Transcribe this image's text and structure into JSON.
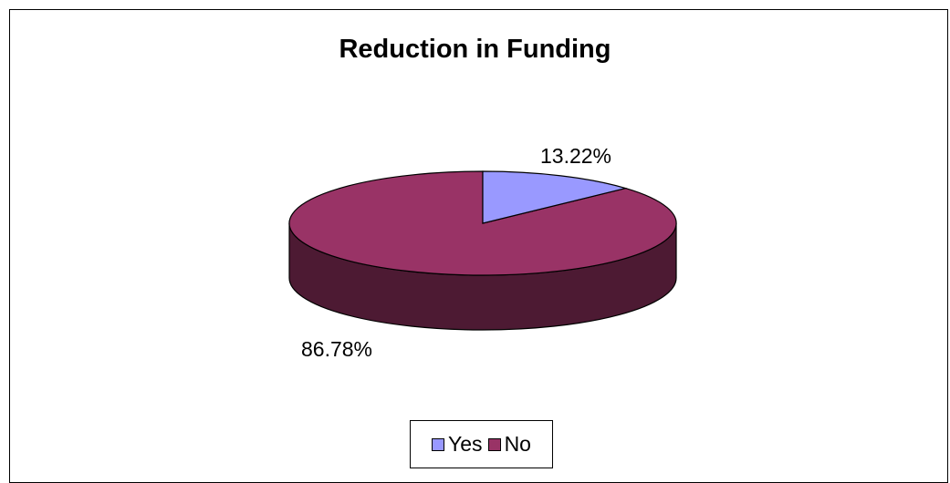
{
  "chart_data": {
    "type": "pie",
    "title": "Reduction in Funding",
    "categories": [
      "Yes",
      "No"
    ],
    "values": [
      13.22,
      86.78
    ],
    "value_labels": [
      "13.22%",
      "86.78%"
    ],
    "legend_placement": "bottom",
    "colors": {
      "yes_top": "#9999ff",
      "no_top": "#993366",
      "no_side": "#4d1a33",
      "outline": "#000000"
    }
  }
}
